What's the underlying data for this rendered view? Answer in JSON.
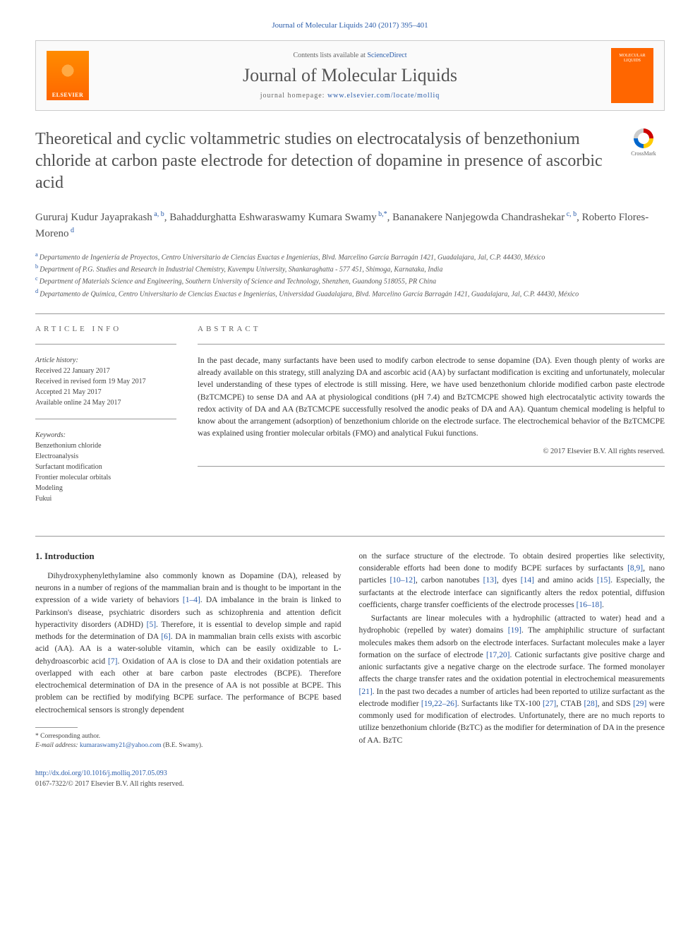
{
  "header": {
    "citation": "Journal of Molecular Liquids 240 (2017) 395–401",
    "contents_prefix": "Contents lists available at ",
    "contents_link": "ScienceDirect",
    "journal_name": "Journal of Molecular Liquids",
    "homepage_prefix": "journal homepage: ",
    "homepage_url": "www.elsevier.com/locate/molliq",
    "publisher_logo": "ELSEVIER",
    "cover_text_top": "MOLECULAR",
    "cover_text_bottom": "LIQUIDS",
    "crossmark_label": "CrossMark"
  },
  "article": {
    "title": "Theoretical and cyclic voltammetric studies on electrocatalysis of benzethonium chloride at carbon paste electrode for detection of dopamine in presence of ascorbic acid",
    "authors_html": "Gururaj Kudur Jayaprakash",
    "authors": [
      {
        "name": "Gururaj Kudur Jayaprakash",
        "sup": "a, b"
      },
      {
        "name": "Bahaddurghatta Eshwaraswamy Kumara Swamy",
        "sup": "b,*"
      },
      {
        "name": "Bananakere Nanjegowda Chandrashekar",
        "sup": "c, b"
      },
      {
        "name": "Roberto Flores-Moreno",
        "sup": "d"
      }
    ],
    "affiliations": [
      {
        "sup": "a",
        "text": "Departamento de Ingeniería de Proyectos, Centro Universitario de Ciencias Exactas e Ingenierías, Blvd. Marcelino García Barragán 1421, Guadalajara, Jal, C.P. 44430, México"
      },
      {
        "sup": "b",
        "text": "Department of P.G. Studies and Research in Industrial Chemistry, Kuvempu University, Shankaraghatta - 577 451, Shimoga, Karnataka, India"
      },
      {
        "sup": "c",
        "text": "Department of Materials Science and Engineering, Southern University of Science and Technology, Shenzhen, Guandong 518055, PR China"
      },
      {
        "sup": "d",
        "text": "Departamento de Química, Centro Universitario de Ciencias Exactas e Ingenierías, Universidad Guadalajara, Blvd. Marcelino García Barragán 1421, Guadalajara, Jal, C.P. 44430, México"
      }
    ]
  },
  "info": {
    "label": "ARTICLE INFO",
    "history_title": "Article history:",
    "history": [
      "Received 22 January 2017",
      "Received in revised form 19 May 2017",
      "Accepted 21 May 2017",
      "Available online 24 May 2017"
    ],
    "keywords_title": "Keywords:",
    "keywords": [
      "Benzethonium chloride",
      "Electroanalysis",
      "Surfactant modification",
      "Frontier molecular orbitals",
      "Modeling",
      "Fukui"
    ]
  },
  "abstract": {
    "label": "ABSTRACT",
    "text": "In the past decade, many surfactants have been used to modify carbon electrode to sense dopamine (DA). Even though plenty of works are already available on this strategy, still analyzing DA and ascorbic acid (AA) by surfactant modification is exciting and unfortunately, molecular level understanding of these types of electrode is still missing. Here, we have used benzethonium chloride modified carbon paste electrode (BzTCMCPE) to sense DA and AA at physiological conditions (pH 7.4) and BzTCMCPE showed high electrocatalytic activity towards the redox activity of DA and AA (BzTCMCPE successfully resolved the anodic peaks of DA and AA). Quantum chemical modeling is helpful to know about the arrangement (adsorption) of benzethonium chloride on the electrode surface. The electrochemical behavior of the BzTCMCPE was explained using frontier molecular orbitals (FMO) and analytical Fukui functions.",
    "copyright": "© 2017 Elsevier B.V. All rights reserved."
  },
  "body": {
    "intro_heading": "1. Introduction",
    "col1_p1": "Dihydroxyphenylethylamine also commonly known as Dopamine (DA), released by neurons in a number of regions of the mammalian brain and is thought to be important in the expression of a wide variety of behaviors [1–4]. DA imbalance in the brain is linked to Parkinson's disease, psychiatric disorders such as schizophrenia and attention deficit hyperactivity disorders (ADHD) [5]. Therefore, it is essential to develop simple and rapid methods for the determination of DA [6]. DA in mammalian brain cells exists with ascorbic acid (AA). AA is a water-soluble vitamin, which can be easily oxidizable to L-dehydroascorbic acid [7]. Oxidation of AA is close to DA and their oxidation potentials are overlapped with each other at bare carbon paste electrodes (BCPE). Therefore electrochemical determination of DA in the presence of AA is not possible at BCPE. This problem can be rectified by modifying BCPE surface. The performance of BCPE based electrochemical sensors is strongly dependent",
    "col2_p1": "on the surface structure of the electrode. To obtain desired properties like selectivity, considerable efforts had been done to modify BCPE surfaces by surfactants [8,9], nano particles [10–12], carbon nanotubes [13], dyes [14] and amino acids [15]. Especially, the surfactants at the electrode interface can significantly alters the redox potential, diffusion coefficients, charge transfer coefficients of the electrode processes [16–18].",
    "col2_p2": "Surfactants are linear molecules with a hydrophilic (attracted to water) head and a hydrophobic (repelled by water) domains [19]. The amphiphilic structure of surfactant molecules makes them adsorb on the electrode interfaces. Surfactant molecules make a layer formation on the surface of electrode [17,20]. Cationic surfactants give positive charge and anionic surfactants give a negative charge on the electrode surface. The formed monolayer affects the charge transfer rates and the oxidation potential in electrochemical measurements [21]. In the past two decades a number of articles had been reported to utilize surfactant as the electrode modifier [19,22–26]. Surfactants like TX-100 [27], CTAB [28], and SDS [29] were commonly used for modification of electrodes. Unfortunately, there are no much reports to utilize benzethonium chloride (BzTC) as the modifier for determination of DA in the presence of AA. BzTC"
  },
  "footnote": {
    "corr": "* Corresponding author.",
    "email_label": "E-mail address: ",
    "email": "kumaraswamy21@yahoo.com",
    "email_suffix": " (B.E. Swamy)."
  },
  "footer": {
    "doi_url": "http://dx.doi.org/10.1016/j.molliq.2017.05.093",
    "issn_line": "0167-7322/© 2017 Elsevier B.V. All rights reserved."
  },
  "colors": {
    "link": "#2a5caa",
    "text": "#333333",
    "muted": "#666666",
    "accent_orange": "#ff6600"
  }
}
